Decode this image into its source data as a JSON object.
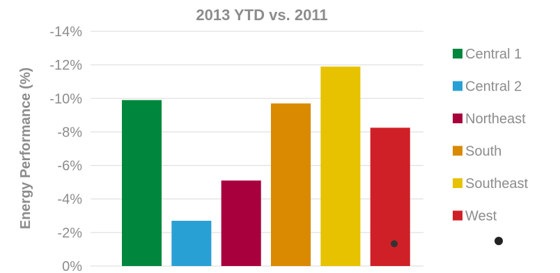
{
  "chart_data": {
    "type": "bar",
    "title": "2013 YTD vs. 2011",
    "ylabel": "Energy Performance (%)",
    "xlabel": "",
    "ylim": [
      0,
      -14
    ],
    "yticks": [
      0,
      -2,
      -4,
      -6,
      -8,
      -10,
      -12,
      -14
    ],
    "ytick_labels": [
      "0%",
      "-2%",
      "-4%",
      "-6%",
      "-8%",
      "-10%",
      "-12%",
      "-14%"
    ],
    "grid": true,
    "legend_position": "right",
    "series": [
      {
        "name": "Central 1",
        "value": -9.9,
        "color": "#00873e"
      },
      {
        "name": "Central 2",
        "value": -2.7,
        "color": "#29a0d4"
      },
      {
        "name": "Northeast",
        "value": -5.1,
        "color": "#a8003d"
      },
      {
        "name": "South",
        "value": -9.7,
        "color": "#d98a00"
      },
      {
        "name": "Southeast",
        "value": -11.9,
        "color": "#e6c200"
      },
      {
        "name": "West",
        "value": -8.25,
        "color": "#cf2027"
      }
    ]
  }
}
